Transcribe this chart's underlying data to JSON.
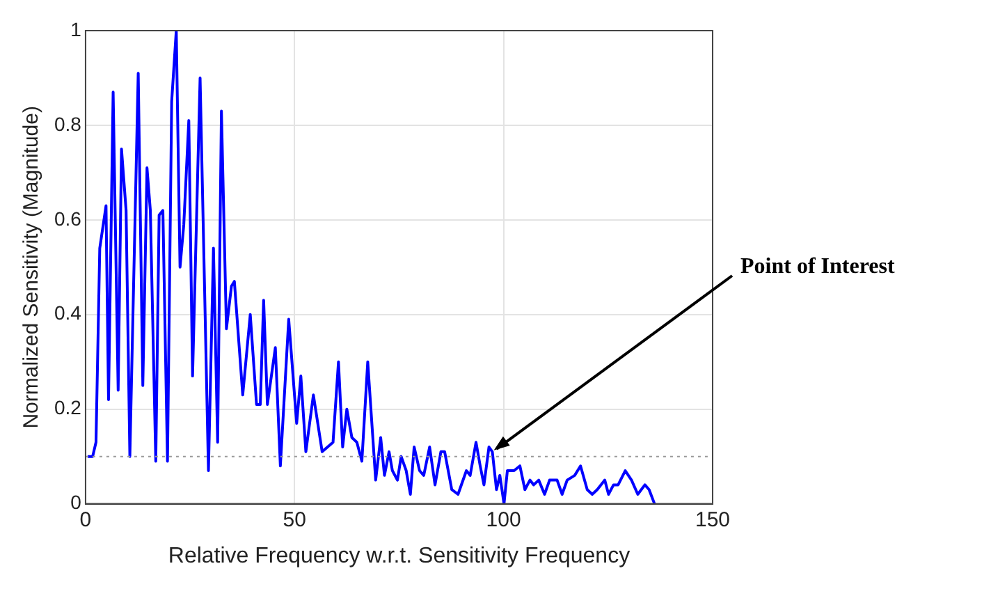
{
  "chart_data": {
    "type": "line",
    "xlabel": "Relative Frequency w.r.t. Sensitivity Frequency",
    "ylabel": "Normalized Sensitivity (Magnitude)",
    "series": [
      {
        "color": "#0000ff",
        "x": [
          0.5,
          1.7,
          2.5,
          3.4,
          4.9,
          5.5,
          6.6,
          7.8,
          8.6,
          9.7,
          10.6,
          12.6,
          13.7,
          14.7,
          15.5,
          16.8,
          17.6,
          18.5,
          19.6,
          20.6,
          21.7,
          22.6,
          23.5,
          24.7,
          25.6,
          27.4,
          29.4,
          30.6,
          31.6,
          32.5,
          33.7,
          34.9,
          35.6,
          37.6,
          39.4,
          40.9,
          41.8,
          42.6,
          43.5,
          45.4,
          46.6,
          48.6,
          50.5,
          51.5,
          52.7,
          54.5,
          56.6,
          59.2,
          60.5,
          61.5,
          62.5,
          63.7,
          64.9,
          66.1,
          67.5,
          69.4,
          70.6,
          71.5,
          72.6,
          73.4,
          74.6,
          75.5,
          76.7,
          77.7,
          78.6,
          79.9,
          80.9,
          82.3,
          83.6,
          85,
          85.9,
          87.6,
          89.1,
          91.1,
          92,
          93.4,
          94.4,
          95.3,
          96.5,
          97.3,
          98.3,
          99.1,
          100.1,
          100.9,
          102.5,
          103.9,
          105.1,
          106.3,
          107.2,
          108.4,
          109.8,
          111,
          112.8,
          114,
          115.2,
          117,
          118.4,
          120,
          121.2,
          122.4,
          124.2,
          125.1,
          126.3,
          127.4,
          129.1,
          130.6,
          132.1,
          133.8,
          134.8,
          136.1
        ],
        "values": [
          0.1,
          0.1,
          0.13,
          0.54,
          0.63,
          0.22,
          0.87,
          0.24,
          0.75,
          0.62,
          0.1,
          0.91,
          0.25,
          0.71,
          0.62,
          0.09,
          0.61,
          0.62,
          0.09,
          0.85,
          1.0,
          0.5,
          0.59,
          0.81,
          0.27,
          0.9,
          0.07,
          0.54,
          0.13,
          0.83,
          0.37,
          0.46,
          0.47,
          0.23,
          0.4,
          0.21,
          0.21,
          0.43,
          0.21,
          0.33,
          0.08,
          0.39,
          0.17,
          0.27,
          0.11,
          0.23,
          0.11,
          0.13,
          0.3,
          0.12,
          0.2,
          0.14,
          0.13,
          0.09,
          0.3,
          0.05,
          0.14,
          0.06,
          0.11,
          0.07,
          0.05,
          0.1,
          0.07,
          0.02,
          0.12,
          0.07,
          0.06,
          0.12,
          0.04,
          0.11,
          0.11,
          0.03,
          0.02,
          0.07,
          0.06,
          0.13,
          0.08,
          0.04,
          0.12,
          0.11,
          0.03,
          0.06,
          0,
          0.07,
          0.07,
          0.08,
          0.03,
          0.05,
          0.04,
          0.05,
          0.02,
          0.05,
          0.05,
          0.02,
          0.05,
          0.06,
          0.08,
          0.03,
          0.02,
          0.03,
          0.05,
          0.02,
          0.04,
          0.04,
          0.07,
          0.05,
          0.02,
          0.04,
          0.03,
          0
        ]
      }
    ],
    "xlim": [
      0,
      150
    ],
    "xticks": [
      0,
      50,
      100,
      150
    ],
    "ylim": [
      0,
      1
    ],
    "yticks": [
      0,
      0.2,
      0.4,
      0.6,
      0.8,
      1
    ],
    "grid": true,
    "legend": false,
    "marker": "none",
    "line_style": "solid",
    "ref_lines": [
      {
        "axis": "y",
        "value": 0.1,
        "color": "#999999",
        "line_style": "dotted"
      }
    ],
    "annotations": [
      {
        "text": "Point of Interest",
        "x": 97,
        "y": 0.11
      }
    ]
  }
}
